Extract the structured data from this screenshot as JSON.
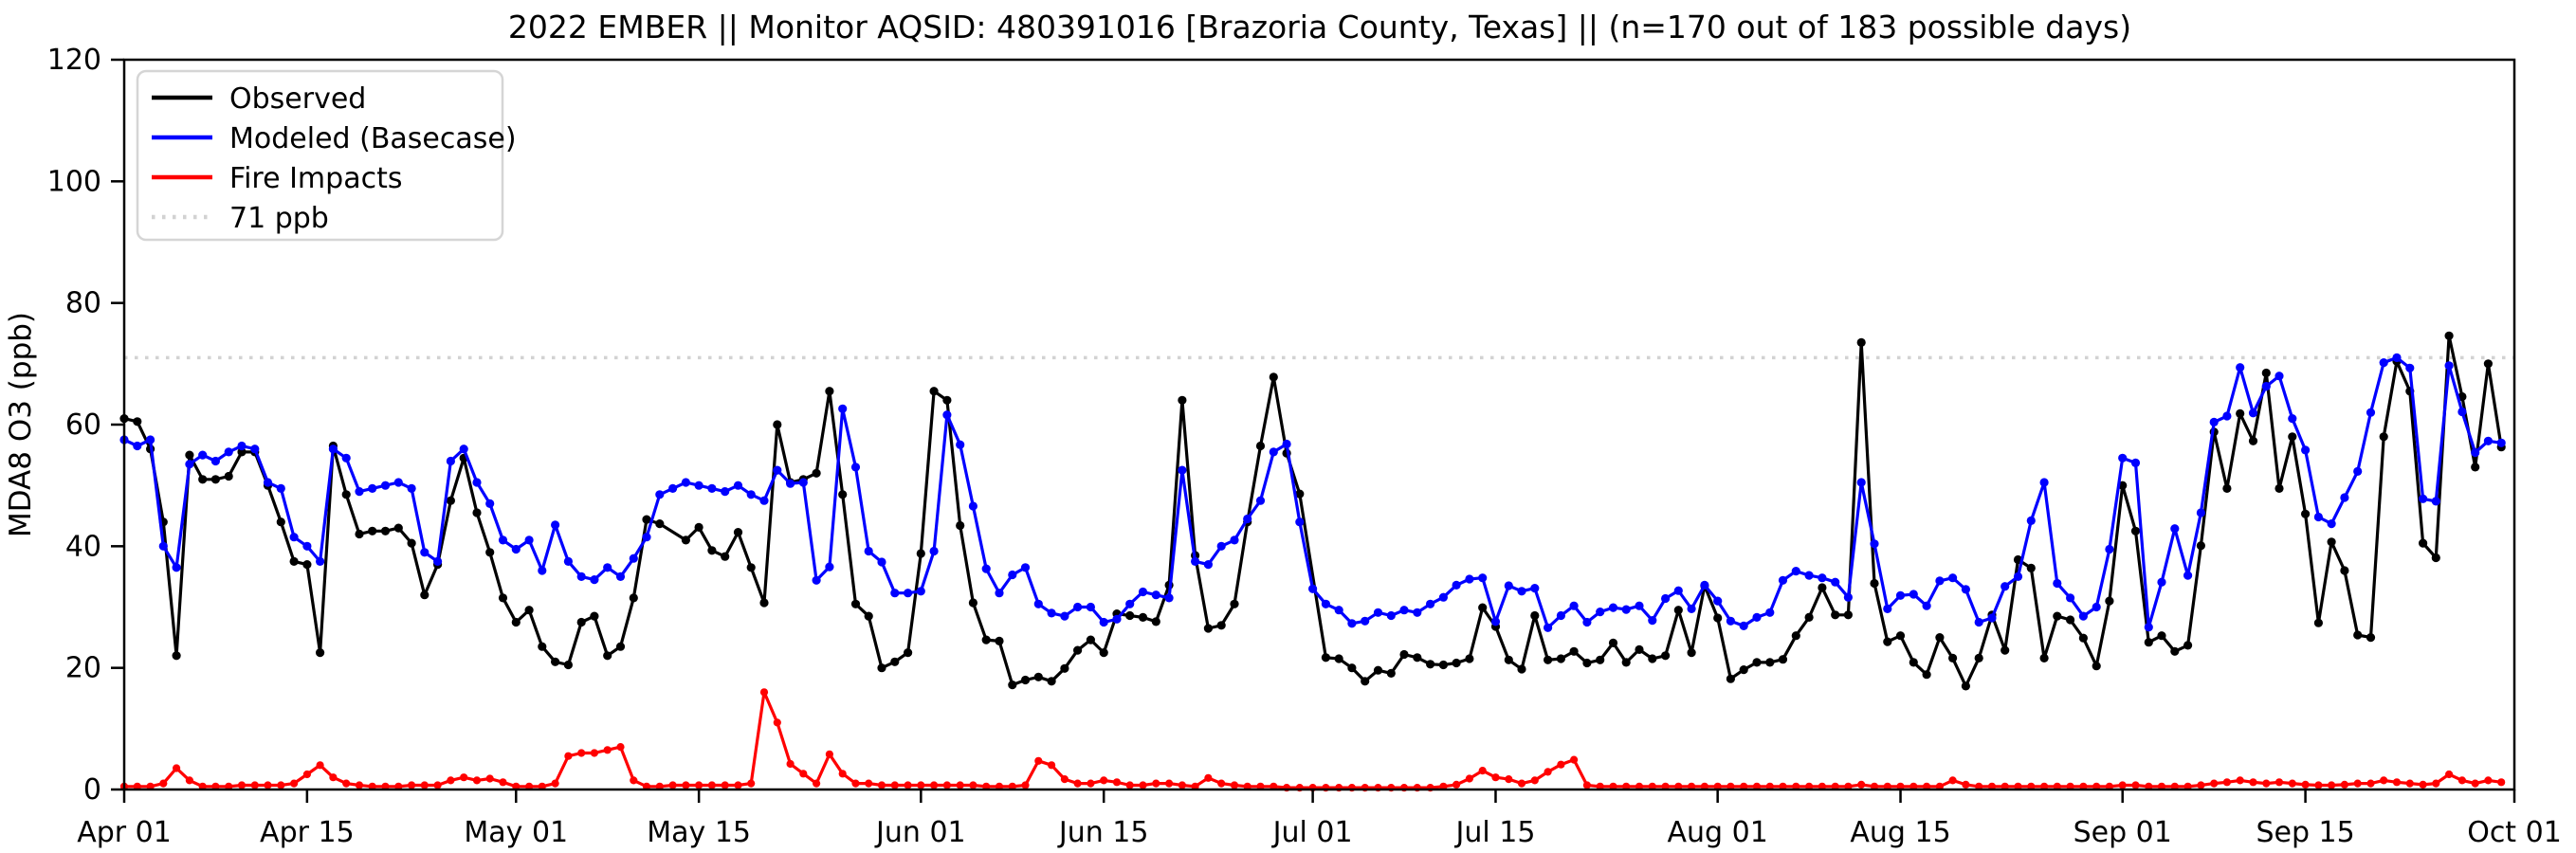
{
  "title": "2022 EMBER || Monitor AQSID: 480391016 [Brazoria County, Texas] || (n=170 out of 183 possible days)",
  "colors": {
    "observed": "#000000",
    "modeled": "#0000ff",
    "fire": "#ff0000",
    "threshold": "#d2d2d2",
    "axis": "#000000",
    "legend_border": "#d5d5d5",
    "background": "#ffffff"
  },
  "legend": {
    "items": [
      {
        "label": "Observed",
        "color": "#000000",
        "style": "solid"
      },
      {
        "label": "Modeled (Basecase)",
        "color": "#0000ff",
        "style": "solid"
      },
      {
        "label": "Fire Impacts",
        "color": "#ff0000",
        "style": "solid"
      },
      {
        "label": "71 ppb",
        "color": "#d2d2d2",
        "style": "dotted"
      }
    ]
  },
  "chart_data": {
    "type": "line",
    "title": "2022 EMBER || Monitor AQSID: 480391016 [Brazoria County, Texas] || (n=170 out of 183 possible days)",
    "xlabel": "",
    "ylabel": "MDA8 O3 (ppb)",
    "ylim": [
      0,
      120
    ],
    "y_ticks": [
      0,
      20,
      40,
      60,
      80,
      100,
      120
    ],
    "grid": false,
    "legend_position": "upper left",
    "start_date": "2022-04-01",
    "end_date": "2022-09-30",
    "n_days": 183,
    "x_ticks": [
      {
        "label": "Apr 01",
        "day": 1
      },
      {
        "label": "Apr 15",
        "day": 15
      },
      {
        "label": "May 01",
        "day": 31
      },
      {
        "label": "May 15",
        "day": 45
      },
      {
        "label": "Jun 01",
        "day": 62
      },
      {
        "label": "Jun 15",
        "day": 76
      },
      {
        "label": "Jul 01",
        "day": 92
      },
      {
        "label": "Jul 15",
        "day": 106
      },
      {
        "label": "Aug 01",
        "day": 123
      },
      {
        "label": "Aug 15",
        "day": 137
      },
      {
        "label": "Sep 01",
        "day": 154
      },
      {
        "label": "Sep 15",
        "day": 168
      },
      {
        "label": "Oct 01",
        "day": 184
      }
    ],
    "reference_line": {
      "value": 71,
      "label": "71 ppb"
    },
    "series": [
      {
        "name": "Observed",
        "color": "#000000",
        "values": [
          61,
          60.5,
          56,
          44,
          22,
          55,
          51,
          51,
          51.5,
          55.5,
          55.5,
          50,
          44,
          37.5,
          37,
          22.5,
          56.5,
          48.5,
          42,
          42.5,
          42.5,
          43,
          40.5,
          32,
          37,
          47.5,
          54.5,
          45.5,
          39,
          31.5,
          27.5,
          29.5,
          23.5,
          21,
          20.5,
          27.5,
          28.5,
          22,
          23.5,
          31.5,
          44.4,
          43.7,
          null,
          41,
          43.1,
          39.3,
          38.3,
          42.3,
          36.5,
          30.7,
          60,
          50.5,
          51,
          52,
          65.5,
          48.5,
          30.5,
          28.5,
          20,
          21,
          22.5,
          38.8,
          65.5,
          64,
          43.4,
          30.7,
          24.6,
          24.4,
          17.2,
          18,
          18.5,
          17.8,
          19.9,
          22.9,
          24.6,
          22.5,
          28.9,
          28.6,
          28.3,
          27.6,
          33.6,
          64,
          38.5,
          26.5,
          27,
          30.5,
          44,
          56.5,
          67.8,
          55.3,
          48.6,
          null,
          21.7,
          21.5,
          20,
          17.8,
          19.6,
          19.1,
          22.2,
          21.7,
          20.6,
          20.5,
          20.8,
          21.5,
          29.9,
          26.8,
          21.3,
          19.8,
          28.6,
          21.3,
          21.5,
          22.7,
          20.8,
          21.3,
          24.1,
          20.9,
          23,
          21.5,
          22,
          29.5,
          22.5,
          33.5,
          28.2,
          18.2,
          19.7,
          20.9,
          20.9,
          21.4,
          25.3,
          28.3,
          33.2,
          28.7,
          28.7,
          73.5,
          33.9,
          24.3,
          25.3,
          20.9,
          18.9,
          25,
          21.6,
          17,
          21.6,
          28.7,
          22.9,
          37.8,
          36.4,
          21.6,
          28.5,
          27.9,
          24.9,
          20.3,
          31,
          50,
          42.5,
          24.2,
          25.3,
          22.7,
          23.7,
          40.1,
          58.8,
          49.5,
          61.8,
          57.3,
          68.5,
          49.5,
          58,
          45.3,
          27.4,
          40.7,
          36,
          25.4,
          25,
          58,
          70.4,
          65.5,
          40.5,
          38.1,
          74.6,
          64.6,
          53,
          70,
          56.3
        ]
      },
      {
        "name": "Modeled (Basecase)",
        "color": "#0000ff",
        "values": [
          57.5,
          56.5,
          57.5,
          40,
          36.5,
          53.5,
          55,
          54,
          55.5,
          56.5,
          56,
          50.5,
          49.5,
          41.5,
          40,
          37.5,
          56,
          54.5,
          49,
          49.5,
          50,
          50.5,
          49.5,
          39,
          37.5,
          54,
          56,
          50.5,
          47,
          41,
          39.5,
          41,
          36,
          43.5,
          37.5,
          35,
          34.5,
          36.5,
          35,
          38,
          41.5,
          48.5,
          49.5,
          50.5,
          50,
          49.5,
          49,
          50,
          48.5,
          47.5,
          52.5,
          50.3,
          50.5,
          34.4,
          36.6,
          62.6,
          53,
          39.2,
          37.4,
          32.3,
          32.3,
          32.6,
          39.2,
          61.6,
          56.7,
          46.6,
          36.3,
          32.3,
          35.3,
          36.5,
          30.5,
          29,
          28.5,
          30,
          30,
          27.5,
          28,
          30.5,
          32.5,
          32,
          31.5,
          52.5,
          37.5,
          37,
          40,
          41,
          44.5,
          47.5,
          55.5,
          56.8,
          44,
          33,
          30.5,
          29.5,
          27.3,
          27.7,
          29.1,
          28.6,
          29.5,
          29.1,
          30.5,
          31.6,
          33.6,
          34.6,
          34.8,
          27.6,
          33.5,
          32.6,
          33.1,
          26.6,
          28.6,
          30.2,
          27.5,
          29.2,
          29.9,
          29.6,
          30.2,
          27.8,
          31.4,
          32.7,
          29.7,
          33.6,
          31,
          27.7,
          26.9,
          28.3,
          29.1,
          34.4,
          35.9,
          35.2,
          34.8,
          34.1,
          31.6,
          50.5,
          40.4,
          29.7,
          31.9,
          32.1,
          30.2,
          34.3,
          34.8,
          32.9,
          27.5,
          28.2,
          33.4,
          35,
          44.2,
          50.5,
          33.9,
          31.5,
          28.5,
          30,
          39.5,
          54.5,
          53.7,
          26.7,
          34.1,
          42.9,
          35.2,
          45.5,
          60.4,
          61.4,
          69.4,
          61.9,
          66.3,
          68,
          61,
          55.8,
          44.8,
          43.7,
          48,
          52.3,
          62,
          70.2,
          71,
          69.3,
          47.8,
          47.4,
          69.7,
          62.1,
          55.4,
          57.3,
          57
        ]
      },
      {
        "name": "Fire Impacts",
        "color": "#ff0000",
        "values": [
          0.5,
          0.5,
          0.5,
          1,
          3.5,
          1.5,
          0.5,
          0.5,
          0.5,
          0.7,
          0.7,
          0.7,
          0.7,
          1,
          2.5,
          4,
          2,
          1,
          0.7,
          0.5,
          0.5,
          0.5,
          0.7,
          0.7,
          0.7,
          1.5,
          2,
          1.5,
          1.8,
          1.2,
          0.5,
          0.5,
          0.5,
          1,
          5.5,
          6,
          6,
          6.5,
          7,
          1.5,
          0.5,
          0.5,
          0.7,
          0.7,
          0.7,
          0.7,
          0.7,
          0.7,
          1,
          16,
          11,
          4.2,
          2.6,
          1,
          5.8,
          2.6,
          1,
          1,
          0.7,
          0.7,
          0.7,
          0.7,
          0.7,
          0.7,
          0.7,
          0.7,
          0.5,
          0.5,
          0.5,
          0.7,
          4.7,
          4,
          1.7,
          1,
          1,
          1.5,
          1.2,
          0.7,
          0.7,
          1,
          1,
          0.7,
          0.5,
          1.9,
          1,
          0.7,
          0.5,
          0.5,
          0.5,
          0.3,
          0.3,
          0.3,
          0.3,
          0.3,
          0.3,
          0.3,
          0.3,
          0.3,
          0.3,
          0.3,
          0.3,
          0.5,
          0.8,
          1.8,
          3.1,
          2,
          1.7,
          1,
          1.5,
          2.9,
          4.1,
          4.9,
          0.7,
          0.5,
          0.5,
          0.5,
          0.5,
          0.5,
          0.5,
          0.5,
          0.5,
          0.5,
          0.5,
          0.5,
          0.5,
          0.5,
          0.5,
          0.5,
          0.5,
          0.5,
          0.5,
          0.5,
          0.5,
          0.8,
          0.5,
          0.5,
          0.5,
          0.5,
          0.5,
          0.5,
          1.5,
          0.8,
          0.5,
          0.5,
          0.5,
          0.5,
          0.5,
          0.5,
          0.5,
          0.5,
          0.5,
          0.5,
          0.5,
          0.7,
          0.7,
          0.5,
          0.5,
          0.5,
          0.5,
          0.7,
          1,
          1.2,
          1.5,
          1.2,
          1,
          1.2,
          1,
          0.8,
          0.7,
          0.7,
          0.8,
          1,
          1,
          1.5,
          1.2,
          1,
          0.8,
          1,
          2.5,
          1.5,
          1,
          1.5,
          1.2
        ]
      }
    ]
  }
}
